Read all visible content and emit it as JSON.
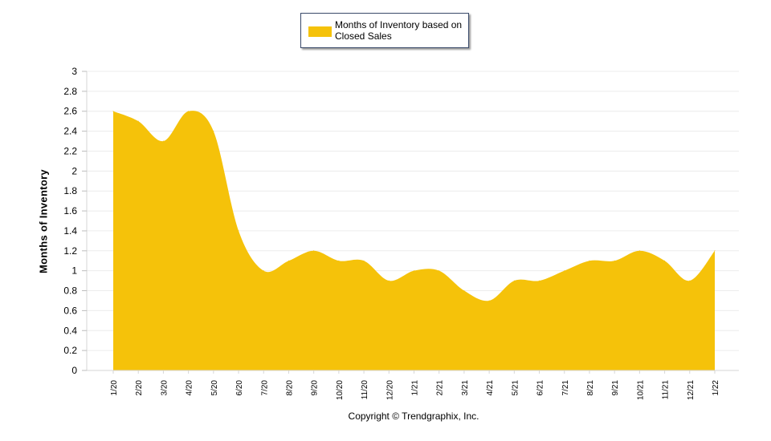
{
  "chart_data": {
    "type": "area",
    "title": "",
    "xlabel": "",
    "ylabel": "Months of Inventory",
    "ylim": [
      0,
      3
    ],
    "yticks": [
      "0",
      "0.2",
      "0.4",
      "0.6",
      "0.8",
      "1",
      "1.2",
      "1.4",
      "1.6",
      "1.8",
      "2",
      "2.2",
      "2.4",
      "2.6",
      "2.8",
      "3"
    ],
    "grid": true,
    "legend_position": "top",
    "categories": [
      "1/20",
      "2/20",
      "3/20",
      "4/20",
      "5/20",
      "6/20",
      "7/20",
      "8/20",
      "9/20",
      "10/20",
      "11/20",
      "12/20",
      "1/21",
      "2/21",
      "3/21",
      "4/21",
      "5/21",
      "6/21",
      "7/21",
      "8/21",
      "9/21",
      "10/21",
      "11/21",
      "12/21",
      "1/22"
    ],
    "series": [
      {
        "name": "Months of Inventory based on Closed Sales",
        "color": "#f5c20a",
        "values": [
          2.6,
          2.5,
          2.3,
          2.6,
          2.4,
          1.4,
          1.0,
          1.1,
          1.2,
          1.1,
          1.1,
          0.9,
          1.0,
          1.0,
          0.8,
          0.7,
          0.9,
          0.9,
          1.0,
          1.1,
          1.1,
          1.2,
          1.1,
          0.9,
          1.2
        ]
      }
    ]
  },
  "legend": {
    "label": "Months of Inventory based on Closed Sales",
    "color": "#f5c20a"
  },
  "footer": {
    "copyright": "Copyright © Trendgraphix, Inc."
  }
}
